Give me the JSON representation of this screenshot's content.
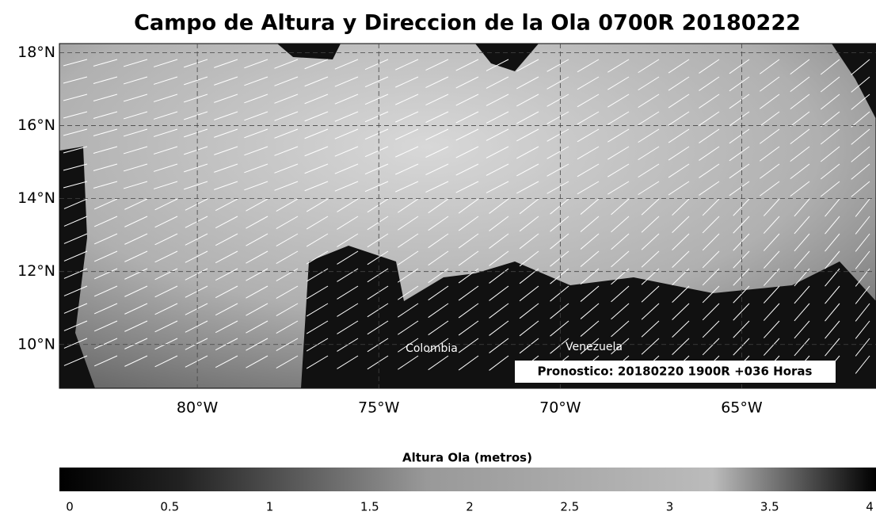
{
  "map": {
    "title": "Campo de Altura y Direccion de la Ola 0700R 20180222",
    "lon_range": [
      -83.8,
      -61.3
    ],
    "lat_range": [
      8.8,
      18.25
    ],
    "lat_ticks": [
      {
        "value": 18,
        "label": "18°N"
      },
      {
        "value": 16,
        "label": "16°N"
      },
      {
        "value": 14,
        "label": "14°N"
      },
      {
        "value": 12,
        "label": "12°N"
      },
      {
        "value": 10,
        "label": "10°N"
      }
    ],
    "lon_ticks": [
      {
        "value": -80,
        "label": "80°W"
      },
      {
        "value": -75,
        "label": "75°W"
      },
      {
        "value": -70,
        "label": "70°W"
      },
      {
        "value": -65,
        "label": "65°W"
      }
    ],
    "place_labels": [
      "Colombia",
      "Venezuela"
    ],
    "annotation": "Pronostico: 20180220 1900R +036 Horas",
    "colorbar": {
      "title": "Altura Ola (metros)",
      "range": [
        0,
        4
      ],
      "ticks": [
        0,
        0.5,
        1,
        1.5,
        2,
        2.5,
        3,
        3.5,
        4
      ]
    }
  }
}
